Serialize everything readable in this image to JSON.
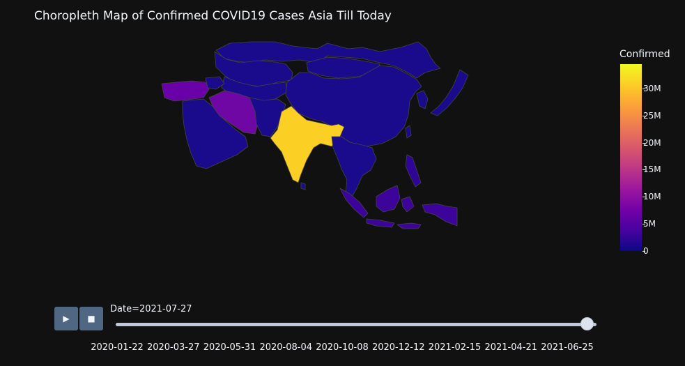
{
  "title": "Choropleth Map of Confirmed COVID19 Cases Asia Till Today",
  "colorbar": {
    "title": "Confirmed",
    "ticks": [
      {
        "label": "0",
        "value": 0
      },
      {
        "label": "5M",
        "value": 5000000
      },
      {
        "label": "10M",
        "value": 10000000
      },
      {
        "label": "15M",
        "value": 15000000
      },
      {
        "label": "20M",
        "value": 20000000
      },
      {
        "label": "25M",
        "value": 25000000
      },
      {
        "label": "30M",
        "value": 30000000
      }
    ],
    "max": 34500000
  },
  "animation": {
    "play_label": "▶",
    "stop_label": "■",
    "current_date_label": "Date=2021-07-27",
    "progress": 1.0,
    "tick_labels": [
      "2020-01-22",
      "2020-03-27",
      "2020-05-31",
      "2020-08-04",
      "2020-10-08",
      "2020-12-12",
      "2021-02-15",
      "2021-04-21",
      "2021-06-25"
    ]
  },
  "colors": {
    "background": "#111111",
    "border": "#444444",
    "low": "#1a0a8c",
    "turkey": "#6a00a8",
    "iran": "#6f07a5",
    "india": "#fccf25",
    "indonesia": "#3c049b",
    "philippines": "#2e0595"
  }
}
